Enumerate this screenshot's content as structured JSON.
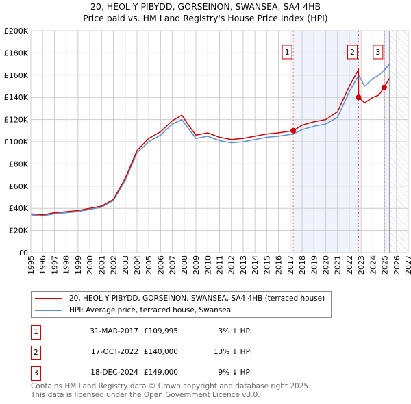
{
  "title": "20, HEOL Y PIBYDD, GORSEINON, SWANSEA, SA4 4HB",
  "subtitle": "Price paid vs. HM Land Registry's House Price Index (HPI)",
  "chart_data": {
    "type": "line",
    "xlim": [
      1995,
      2027
    ],
    "ylim": [
      0,
      200000
    ],
    "x_ticks": [
      "1995",
      "1996",
      "1997",
      "1998",
      "1999",
      "2000",
      "2001",
      "2002",
      "2003",
      "2004",
      "2005",
      "2006",
      "2007",
      "2008",
      "2009",
      "2010",
      "2011",
      "2012",
      "2013",
      "2014",
      "2015",
      "2016",
      "2017",
      "2018",
      "2019",
      "2020",
      "2021",
      "2022",
      "2023",
      "2024",
      "2025",
      "2026",
      "2027"
    ],
    "y_ticks": [
      {
        "v": 0,
        "l": "£0"
      },
      {
        "v": 20000,
        "l": "£20K"
      },
      {
        "v": 40000,
        "l": "£40K"
      },
      {
        "v": 60000,
        "l": "£60K"
      },
      {
        "v": 80000,
        "l": "£80K"
      },
      {
        "v": 100000,
        "l": "£100K"
      },
      {
        "v": 120000,
        "l": "£120K"
      },
      {
        "v": 140000,
        "l": "£140K"
      },
      {
        "v": 160000,
        "l": "£160K"
      },
      {
        "v": 180000,
        "l": "£180K"
      },
      {
        "v": 200000,
        "l": "£200K"
      }
    ],
    "series": [
      {
        "name": "20, HEOL Y PIBYDD, GORSEINON, SWANSEA, SA4 4HB (terraced house)",
        "color": "#cc0000",
        "x": [
          1995,
          1996,
          1997,
          1998,
          1999,
          2000,
          2001,
          2002,
          2003,
          2004,
          2005,
          2006,
          2007,
          2007.8,
          2008.5,
          2009,
          2010,
          2011,
          2012,
          2013,
          2014,
          2015,
          2016,
          2017.25,
          2018,
          2019,
          2020,
          2021,
          2022,
          2022.78,
          2022.79,
          2023.3,
          2024,
          2024.5,
          2024.96,
          2025.4
        ],
        "y": [
          35000,
          34000,
          36000,
          37000,
          38000,
          40000,
          42000,
          48000,
          67000,
          92000,
          103000,
          109000,
          119000,
          124000,
          113000,
          106000,
          108000,
          104000,
          102000,
          103000,
          105000,
          107000,
          108000,
          109995,
          115000,
          118000,
          120000,
          127000,
          150000,
          165000,
          140000,
          135000,
          140000,
          142000,
          149000,
          157000
        ]
      },
      {
        "name": "HPI: Average price, terraced house, Swansea",
        "color": "#5b8fd0",
        "x": [
          1995,
          1996,
          1997,
          1998,
          1999,
          2000,
          2001,
          2002,
          2003,
          2004,
          2005,
          2006,
          2007,
          2007.8,
          2008.5,
          2009,
          2010,
          2011,
          2012,
          2013,
          2014,
          2015,
          2016,
          2017.25,
          2018,
          2019,
          2020,
          2021,
          2022,
          2022.8,
          2023.3,
          2024,
          2024.5,
          2025,
          2025.4
        ],
        "y": [
          34000,
          33000,
          35000,
          36000,
          37000,
          39000,
          41000,
          47000,
          65000,
          90000,
          100000,
          106000,
          116000,
          120000,
          110000,
          103000,
          105000,
          101000,
          99000,
          100000,
          102000,
          104000,
          105000,
          107000,
          111000,
          114000,
          116000,
          122000,
          145000,
          160000,
          150000,
          157000,
          160000,
          165000,
          170000
        ]
      }
    ],
    "sales": [
      {
        "label": "1",
        "x": 2017.25,
        "y": 109995
      },
      {
        "label": "2",
        "x": 2022.79,
        "y": 140000
      },
      {
        "label": "3",
        "x": 2024.96,
        "y": 149000
      }
    ],
    "forecast_start": 2025.4
  },
  "legend": [
    "20, HEOL Y PIBYDD, GORSEINON, SWANSEA, SA4 4HB (terraced house)",
    "HPI: Average price, terraced house, Swansea"
  ],
  "transactions": [
    {
      "num": "1",
      "date": "31-MAR-2017",
      "price": "£109,995",
      "hpi": "3% ↑ HPI"
    },
    {
      "num": "2",
      "date": "17-OCT-2022",
      "price": "£140,000",
      "hpi": "13% ↓ HPI"
    },
    {
      "num": "3",
      "date": "18-DEC-2024",
      "price": "£149,000",
      "hpi": "9% ↓ HPI"
    }
  ],
  "footer": [
    "Contains HM Land Registry data © Crown copyright and database right 2025.",
    "This data is licensed under the Open Government Licence v3.0."
  ]
}
